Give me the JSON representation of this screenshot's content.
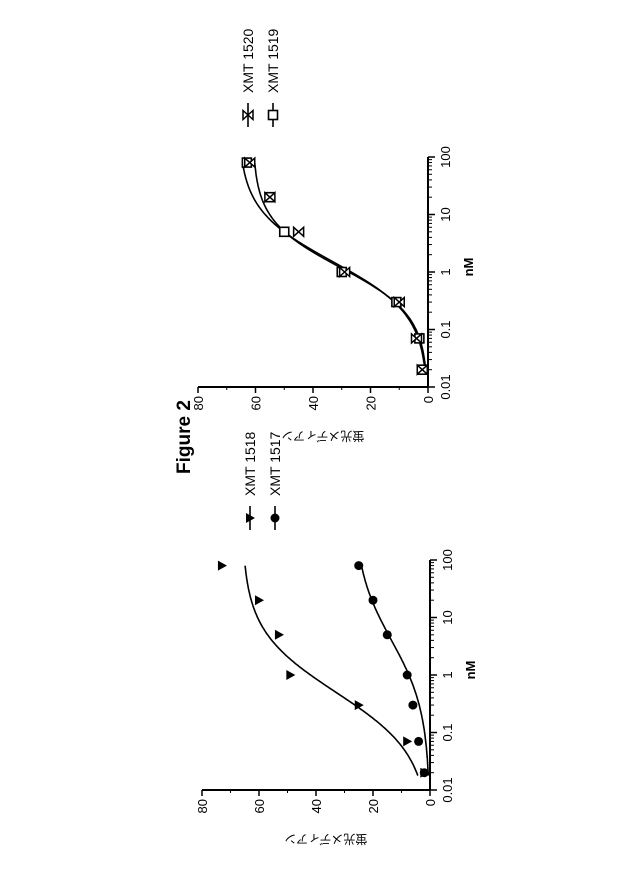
{
  "figure_title": "Figure 2",
  "chart_data": [
    {
      "type": "scatter",
      "xscale": "log",
      "xlim": [
        0.01,
        100
      ],
      "ylim": [
        0,
        80
      ],
      "xticks": [
        "0.01",
        "0.1",
        "1",
        "10",
        "100"
      ],
      "yticks": [
        "0",
        "20",
        "40",
        "60",
        "80"
      ],
      "xlabel": "nM",
      "ylabel": "蛍光メディアン",
      "grid": false,
      "legend": "right",
      "series": [
        {
          "name": "XMT 1517",
          "marker": "circle",
          "x": [
            0.02,
            0.07,
            0.3,
            1,
            5,
            20,
            80
          ],
          "y": [
            2,
            4,
            6,
            8,
            15,
            20,
            25
          ],
          "fit": {
            "bottom": 0,
            "top": 27,
            "ec50": 4,
            "hill": 0.7
          }
        },
        {
          "name": "XMT 1518",
          "marker": "triangle",
          "x": [
            0.02,
            0.07,
            0.3,
            1,
            5,
            20,
            80
          ],
          "y": [
            2,
            8,
            25,
            49,
            53,
            60,
            73
          ],
          "fit": {
            "bottom": 0,
            "top": 66,
            "ec50": 0.5,
            "hill": 0.8
          }
        }
      ]
    },
    {
      "type": "scatter",
      "xscale": "log",
      "xlim": [
        0.01,
        100
      ],
      "ylim": [
        0,
        80
      ],
      "xticks": [
        "0.01",
        "0.1",
        "1",
        "10",
        "100"
      ],
      "yticks": [
        "0",
        "20",
        "40",
        "60",
        "80"
      ],
      "xlabel": "nM",
      "ylabel": "蛍光メディアン",
      "grid": false,
      "legend": "right",
      "series": [
        {
          "name": "XMT 1519",
          "marker": "square",
          "x": [
            0.02,
            0.07,
            0.3,
            1,
            5,
            20,
            80
          ],
          "y": [
            2,
            3,
            11,
            30,
            50,
            55,
            63
          ],
          "fit": {
            "bottom": 0,
            "top": 66,
            "ec50": 1.5,
            "hill": 0.95
          }
        },
        {
          "name": "XMT 1520",
          "marker": "hourglass",
          "x": [
            0.02,
            0.07,
            0.3,
            1,
            5,
            20,
            80
          ],
          "y": [
            2,
            4,
            10,
            29,
            45,
            55,
            62
          ],
          "fit": {
            "bottom": 0,
            "top": 61,
            "ec50": 1.2,
            "hill": 1.05
          }
        }
      ]
    }
  ]
}
